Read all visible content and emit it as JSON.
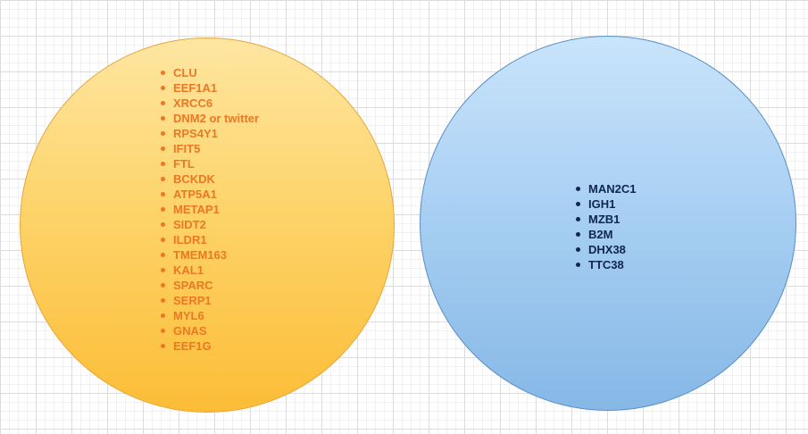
{
  "colors": {
    "left_circle_fill_top": "#fee6a1",
    "left_circle_fill_bottom": "#fcbd36",
    "left_circle_border": "#e8a53b",
    "left_text": "#ec7724",
    "right_circle_fill_top": "#c9e4fb",
    "right_circle_fill_bottom": "#86b8e6",
    "right_circle_border": "#5a8fc7",
    "right_text": "#10254f",
    "grid": "#dcdcdc"
  },
  "left_circle": {
    "genes": [
      "CLU",
      "EEF1A1",
      "XRCC6",
      "DNM2 or twitter",
      "RPS4Y1",
      "IFIT5",
      "FTL",
      "BCKDK",
      "ATP5A1",
      "METAP1",
      "SIDT2",
      "ILDR1",
      "TMEM163",
      "KAL1",
      "SPARC",
      "SERP1",
      "MYL6",
      "GNAS",
      "EEF1G"
    ]
  },
  "right_circle": {
    "genes": [
      "MAN2C1",
      "IGH1",
      "MZB1",
      "B2M",
      "DHX38",
      "TTC38"
    ]
  }
}
